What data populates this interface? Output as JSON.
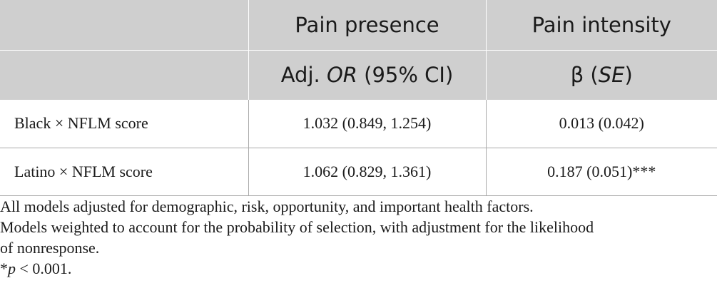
{
  "table": {
    "header_row1": [
      "",
      "Pain presence",
      "Pain intensity"
    ],
    "header_row2": {
      "col1": "",
      "presence_prefix": "Adj. ",
      "presence_italic": "OR",
      "presence_suffix": " (95% CI)",
      "intensity_prefix": "β (",
      "intensity_italic": "SE",
      "intensity_suffix": ")"
    },
    "rows": [
      {
        "label": "Black × NFLM score",
        "presence": "1.032 (0.849, 1.254)",
        "intensity": "0.013 (0.042)"
      },
      {
        "label": "Latino × NFLM score",
        "presence": "1.062 (0.829, 1.361)",
        "intensity": "0.187 (0.051)***"
      }
    ]
  },
  "notes": {
    "note1": "All models adjusted for demographic, risk, opportunity, and important health factors.",
    "note2": "Models weighted to account for the probability of selection, with adjustment for the likelihood of nonresponse.",
    "footnote_star": "*",
    "footnote_p": "p",
    "footnote_rest": " < 0.001."
  },
  "colors": {
    "header_bg": "#cfcfcf",
    "rule": "#a9a9a9",
    "text": "#1a1a1a"
  }
}
